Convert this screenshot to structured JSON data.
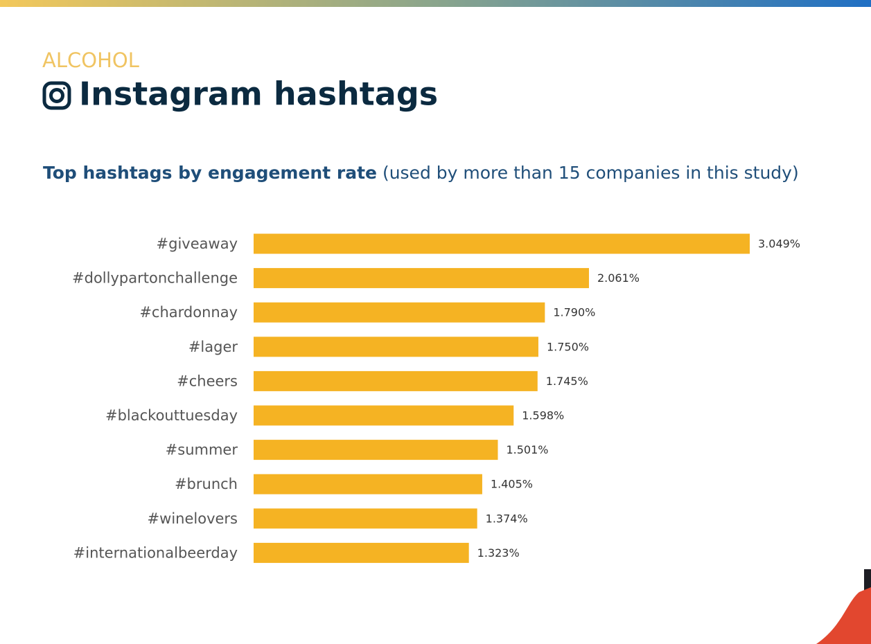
{
  "chart_data": {
    "type": "hbar",
    "kicker": "ALCOHOL",
    "title": "Instagram hashtags",
    "subtitle": "Top hashtags by engagement rate",
    "subtitle_note": "(used by more than 15 companies in this study)",
    "categories": [
      "#giveaway",
      "#dollypartonchallenge",
      "#chardonnay",
      "#lager",
      "#cheers",
      "#blackouttuesday",
      "#summer",
      "#brunch",
      "#winelovers",
      "#internationalbeerday"
    ],
    "values": [
      3.049,
      2.061,
      1.79,
      1.75,
      1.745,
      1.598,
      1.501,
      1.405,
      1.374,
      1.323
    ],
    "value_labels": [
      "3.049%",
      "2.061%",
      "1.790%",
      "1.750%",
      "1.745%",
      "1.598%",
      "1.501%",
      "1.405%",
      "1.374%",
      "1.323%"
    ],
    "color": "#f5b323"
  }
}
